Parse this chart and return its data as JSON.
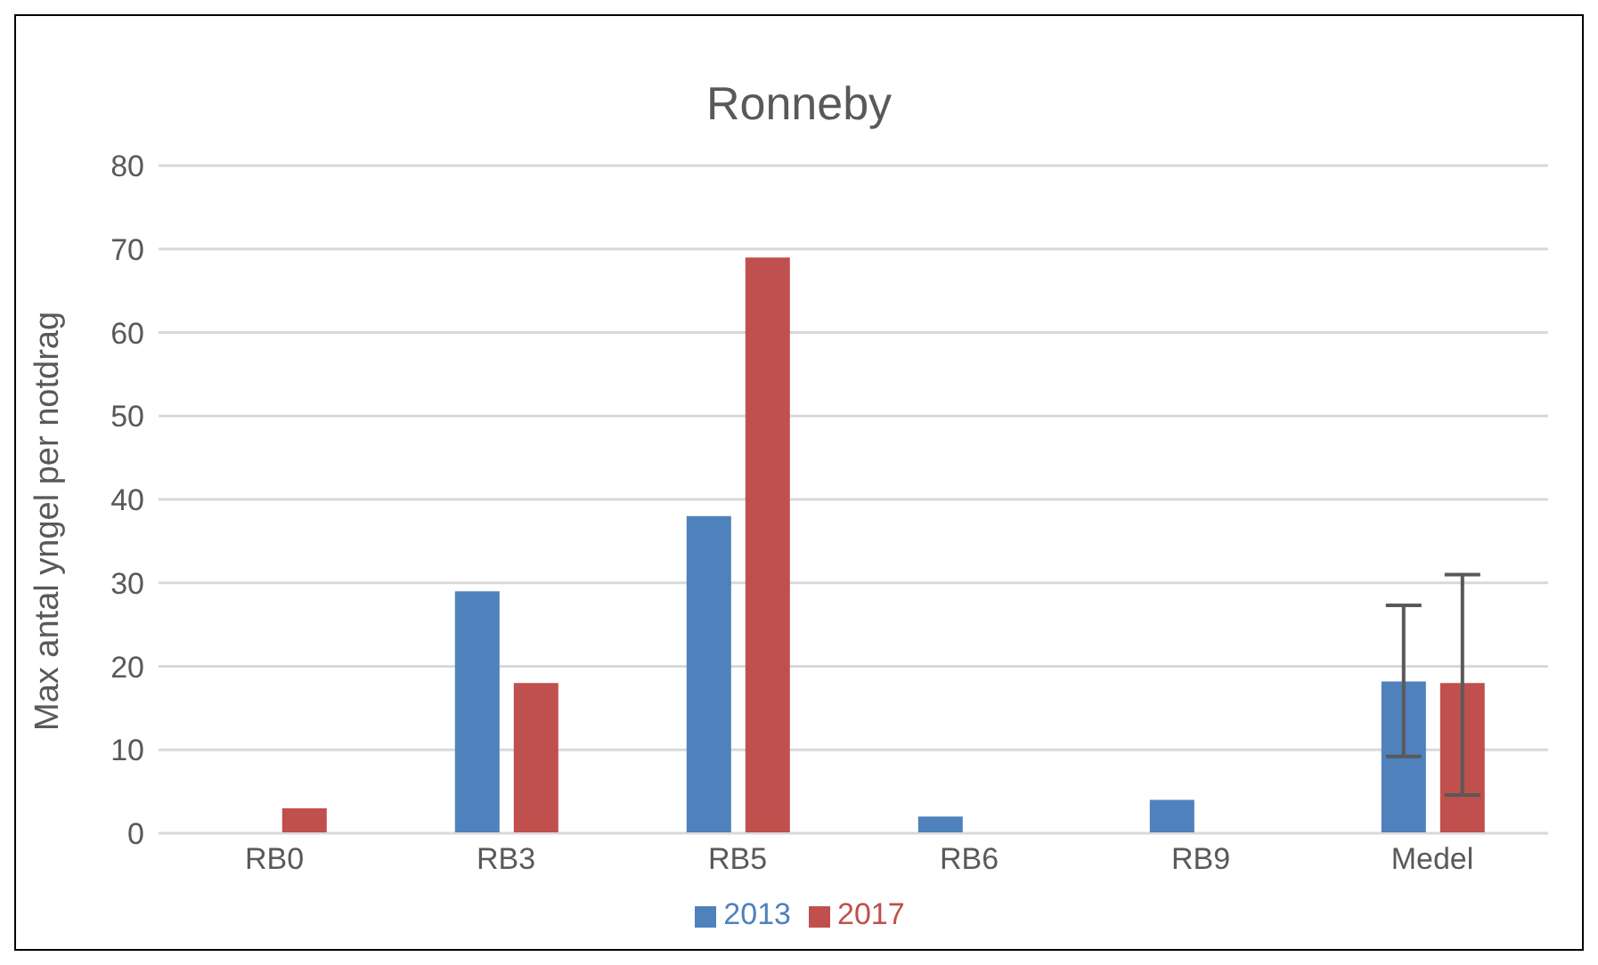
{
  "chart_data": {
    "type": "bar",
    "title": "Ronneby",
    "ylabel": "Max antal yngel per notdrag",
    "categories": [
      "RB0",
      "RB3",
      "RB5",
      "RB6",
      "RB9",
      "Medel"
    ],
    "series": [
      {
        "name": "2013",
        "color": "#4f81bd",
        "values": [
          0,
          29,
          38,
          2,
          4,
          18.2
        ],
        "errors": [
          null,
          null,
          null,
          null,
          null,
          [
            9.2,
            27.3
          ]
        ]
      },
      {
        "name": "2017",
        "color": "#c0504d",
        "values": [
          3,
          18,
          69,
          0,
          0,
          18
        ],
        "errors": [
          null,
          null,
          null,
          null,
          null,
          [
            4.6,
            31
          ]
        ]
      }
    ],
    "ylim": [
      0,
      80
    ],
    "yticks": [
      0,
      10,
      20,
      30,
      40,
      50,
      60,
      70,
      80
    ],
    "grid": "y",
    "legend": "bottom"
  }
}
